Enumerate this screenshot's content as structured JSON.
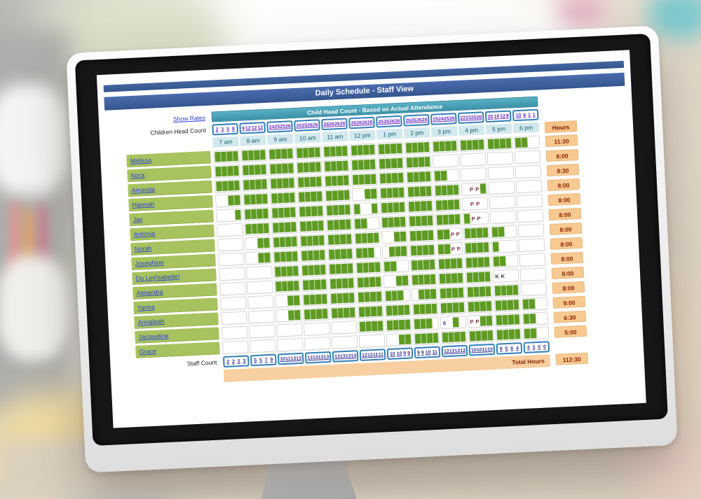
{
  "window": {
    "title": "Daily Schedule - Staff View"
  },
  "header": {
    "band_title": "Child Head Count - Based on Actual Attendance",
    "show_rates_label": "Show Rates",
    "children_head_count_label": "Children Head Count",
    "hours_header": "Hours",
    "times": [
      "7 am",
      "8 am",
      "9 am",
      "10 am",
      "11 am",
      "12 pm",
      "1 pm",
      "2 pm",
      "3 pm",
      "4 pm",
      "5 pm",
      "6 pm"
    ],
    "children_head_counts": [
      [
        "2",
        "3",
        "5",
        "8"
      ],
      [
        "9",
        "12",
        "12",
        "12"
      ],
      [
        "24",
        "25",
        "25",
        "26"
      ],
      [
        "25",
        "25",
        "26",
        "26"
      ],
      [
        "26",
        "26",
        "26",
        "26"
      ],
      [
        "26",
        "26",
        "26",
        "26"
      ],
      [
        "25",
        "26",
        "26",
        "26"
      ],
      [
        "26",
        "26",
        "26",
        "26"
      ],
      [
        "25",
        "24",
        "25",
        "26"
      ],
      [
        "22",
        "23",
        "25",
        "26"
      ],
      [
        "20",
        "18",
        "12",
        "8"
      ],
      [
        "10",
        "6",
        "1",
        "1"
      ]
    ]
  },
  "staff": [
    {
      "name": "Melissa",
      "hours": "11:30",
      "pattern": "ggggggggggggggggggggggggggggggggggggggggggggggww"
    },
    {
      "name": "Nora",
      "hours": "8:00",
      "pattern": "ggggggggggggggggggggggggggggggggwwwwwwwwwwwwwwww"
    },
    {
      "name": "Amanda",
      "hours": "8:30",
      "pattern": "ggggggggggggggggggggggggggggggggggwwwwwwwwwwwwww"
    },
    {
      "name": "Hannah",
      "hours": "8:00",
      "pattern": "wwggggggggggggggggggwwggggggggggggggwPPgwwwwwwww"
    },
    {
      "name": "Jay",
      "hours": "8:00",
      "pattern": "wwwggggggggggggggggggwwgggggggggggggwPPwwwwwwwww"
    },
    {
      "name": "Antonia",
      "hours": "8:00",
      "pattern": "wwwwggggggggggggggggggwwgggggggggggggPPwwwwwwwww"
    },
    {
      "name": "Norah",
      "hours": "8:00",
      "pattern": "wwwwwwggggggggggggggggggwwggggggggPPggggggwwwwww"
    },
    {
      "name": "Josephine",
      "hours": "8:00",
      "pattern": "wwwwwwgggggggggggggggggwwgggggggggPPgggggwwwwwww"
    },
    {
      "name": "Du Lin(Isabelle)",
      "hours": "8:00",
      "pattern": "wwwwwwwwggggggggggggggggggwwggggggggggggggwwwwww"
    },
    {
      "name": "Alejandra",
      "hours": "8:00",
      "pattern": "wwwwwwwwggggggggggggggggwwggggggggggggggKKwwwwww"
    },
    {
      "name": "Yanira",
      "hours": "8:00",
      "pattern": "wwwwwwwwwwgggggggggggggggggwwgggggggggggggggwwww"
    },
    {
      "name": "Annaleah",
      "hours": "9:00",
      "pattern": "wwwwwwwwwwggggggggggggggggggggggggggggggggggggww"
    },
    {
      "name": "Jacqueline",
      "hours": "6:30",
      "pattern": "wwwwwwwwwwwwwwwwwwwwgggggggggggw6wgwPPggggggggww"
    },
    {
      "name": "Grace",
      "hours": "5:00",
      "pattern": "wwwwwwwwwwwwwwwwwwwwwwwwwwggggggggggggggggggggww"
    }
  ],
  "footer": {
    "staff_count_label": "Staff Count",
    "staff_counts": [
      [
        "2",
        "2",
        "2",
        "3"
      ],
      [
        "5",
        "5",
        "7",
        "9"
      ],
      [
        "10",
        "11",
        "13",
        "13"
      ],
      [
        "13",
        "13",
        "13",
        "13"
      ],
      [
        "13",
        "13",
        "13",
        "13"
      ],
      [
        "12",
        "12",
        "11",
        "11"
      ],
      [
        "10",
        "10",
        "9",
        "9"
      ],
      [
        "9",
        "9",
        "10",
        "11"
      ],
      [
        "12",
        "12",
        "12",
        "12"
      ],
      [
        "10",
        "10",
        "11",
        "10"
      ],
      [
        "9",
        "5",
        "6",
        "4"
      ],
      [
        "4",
        "3",
        "0",
        "0"
      ]
    ],
    "total_hours_label": "Total Hours",
    "total_hours": "112:30"
  },
  "colors": {
    "title_bar_blue": "#3a5d9e",
    "band_teal": "#47a0b6",
    "cell_green": "#5e9b22",
    "name_green": "#a7c35f",
    "hours_peach": "#f7ca92",
    "link_blue": "#2b3fd6",
    "count_purple": "#6a30c0",
    "marker_maroon": "#7a2230"
  }
}
